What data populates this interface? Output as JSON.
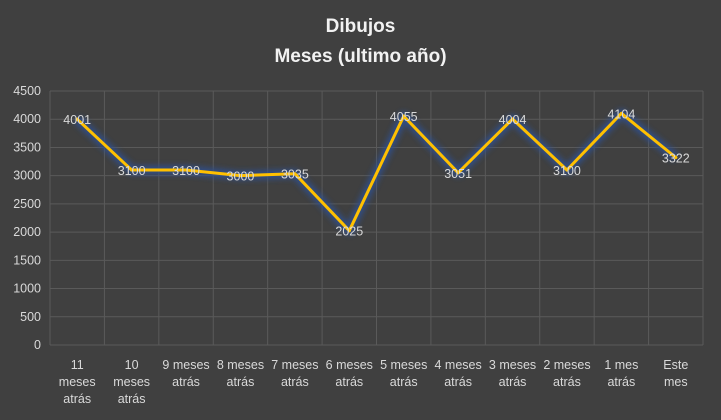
{
  "chart_data": {
    "type": "line",
    "title": "Dibujos",
    "subtitle": "Meses (ultimo año)",
    "categories": [
      [
        "11",
        "meses",
        "atrás"
      ],
      [
        "10",
        "meses",
        "atrás"
      ],
      [
        "9 meses",
        "atrás"
      ],
      [
        "8 meses",
        "atrás"
      ],
      [
        "7 meses",
        "atrás"
      ],
      [
        "6 meses",
        "atrás"
      ],
      [
        "5 meses",
        "atrás"
      ],
      [
        "4 meses",
        "atrás"
      ],
      [
        "3 meses",
        "atrás"
      ],
      [
        "2 meses",
        "atrás"
      ],
      [
        "1 mes",
        "atrás"
      ],
      [
        "Este",
        "mes"
      ]
    ],
    "series": [
      {
        "values": [
          4001,
          3100,
          3100,
          3000,
          3035,
          2025,
          4055,
          3051,
          4004,
          3100,
          4104,
          3322
        ]
      }
    ],
    "ylim": [
      0,
      4500
    ],
    "yticks": [
      "0",
      "500",
      "1000",
      "1500",
      "2000",
      "2500",
      "3000",
      "3500",
      "4000",
      "4500"
    ],
    "grid": true,
    "data_labels": true,
    "colors": {
      "background": "#404040",
      "line": "#ffc000",
      "glow": "#2e4f8f",
      "grid": "#5a5a5a",
      "text": "#d9d9d9"
    }
  }
}
